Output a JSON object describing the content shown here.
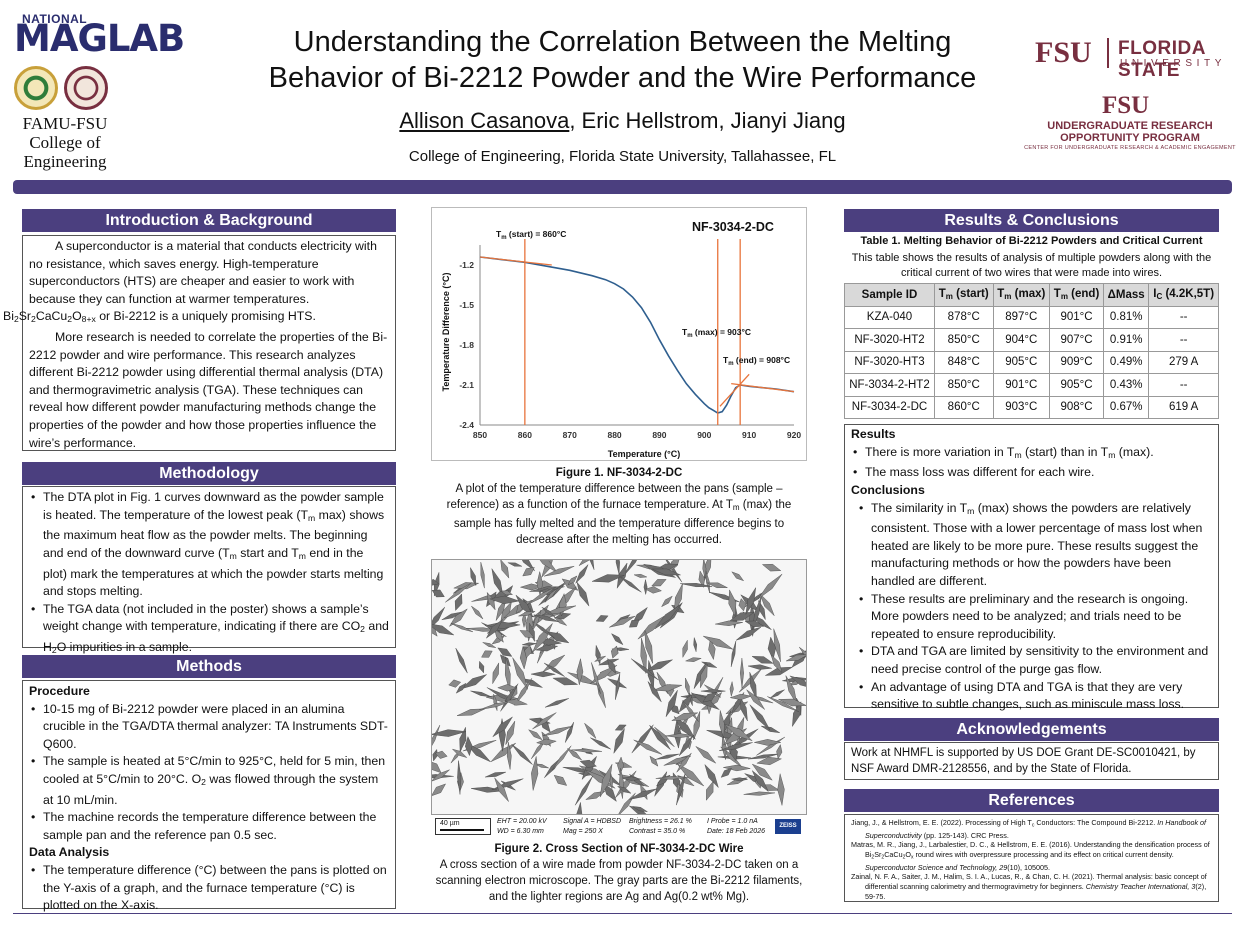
{
  "header": {
    "title_line1": "Understanding the Correlation Between the Melting",
    "title_line2": "Behavior of Bi-2212 Powder and the Wire Performance",
    "author_first": "Allison Casanova",
    "authors_rest": ", Eric Hellstrom, Jianyi Jiang",
    "affiliation": "College of Engineering, Florida State University, Tallahassee, FL"
  },
  "logos": {
    "maglab_small": "NATIONAL",
    "maglab": "MAGLAB",
    "famu_line1": "FAMU-FSU",
    "famu_line2": "College of",
    "famu_line3": "Engineering",
    "fsu_short": "FSU",
    "fsu_name": "FLORIDA STATE",
    "fsu_univ": "UNIVERSITY",
    "urop_short": "FSU",
    "urop_line1": "UNDERGRADUATE RESEARCH",
    "urop_line2": "OPPORTUNITY PROGRAM",
    "urop_sub": "CENTER FOR UNDERGRADUATE RESEARCH & ACADEMIC ENGAGEMENT"
  },
  "intro": {
    "heading": "Introduction & Background",
    "p1": "A superconductor is a material that conducts electricity with no resistance, which saves energy. High-temperature superconductors (HTS) are cheaper and easier to work with because they can function at warmer temperatures.",
    "formula_pre": "Bi",
    "formula_s1": "2",
    "formula_m1": "Sr",
    "formula_s2": "2",
    "formula_m2": "CaCu",
    "formula_s3": "2",
    "formula_m3": "O",
    "formula_s4": "8+x",
    "formula_post": " or Bi-2212 is a uniquely promising HTS.",
    "p2": "More research is needed to correlate the properties of the Bi-2212 powder and wire performance. This research analyzes different Bi-2212 powder using differential thermal analysis (DTA) and thermogravimetric analysis (TGA). These techniques can reveal how different powder manufacturing methods change the properties of the powder and how those properties influence the wire’s performance."
  },
  "methodology": {
    "heading": "Methodology",
    "b1_a": "The DTA plot in Fig. 1 curves downward as the powder sample is heated. The temperature of the lowest peak (T",
    "b1_sub1": "m",
    "b1_b": " max) shows the maximum heat flow as the powder melts. The beginning and end of the downward curve (T",
    "b1_sub2": "m",
    "b1_c": " start and T",
    "b1_sub3": "m",
    "b1_d": " end in the plot) mark the temperatures at which the powder starts melting and stops melting.",
    "b2_a": "The TGA data (not included in the poster) shows a sample’s weight change with temperature, indicating if there are CO",
    "b2_sub1": "2",
    "b2_b": " and H",
    "b2_sub2": "2",
    "b2_c": "O impurities in a sample."
  },
  "methods": {
    "heading": "Methods",
    "procedure": "Procedure",
    "p1": "10-15 mg of Bi-2212 powder were placed in an alumina crucible in the TGA/DTA thermal analyzer: TA Instruments SDT-Q600.",
    "p2_a": "The sample is heated at 5°C/min to 925°C, held for 5 min, then cooled at 5°C/min to 20°C. O",
    "p2_sub": "2",
    "p2_b": " was flowed through the system at 10 mL/min.",
    "p3": "The machine records the temperature difference between the sample pan and the reference pan 0.5 sec.",
    "analysis": "Data Analysis",
    "a1": "The temperature difference (°C) between the pans is plotted on the Y-axis of a graph, and the furnace temperature (°C) is plotted on the X-axis."
  },
  "chart_data": {
    "type": "line",
    "title": "NF-3034-2-DC",
    "xlabel": "Temperature (°C)",
    "ylabel": "Temperature Difference (°C)",
    "xlim": [
      850,
      920
    ],
    "ylim": [
      -2.4,
      -1.05
    ],
    "xticks": [
      850,
      860,
      870,
      880,
      890,
      900,
      910,
      920
    ],
    "yticks": [
      -1.2,
      -1.5,
      -1.8,
      -2.1,
      -2.4
    ],
    "series": [
      {
        "name": "DTA",
        "x": [
          850,
          855,
          860,
          865,
          870,
          875,
          878,
          880,
          882,
          884,
          886,
          888,
          890,
          892,
          894,
          896,
          898,
          900,
          901,
          902,
          903,
          904,
          905,
          906,
          907,
          908,
          910,
          913,
          916,
          920
        ],
        "y": [
          -1.14,
          -1.16,
          -1.18,
          -1.21,
          -1.24,
          -1.28,
          -1.31,
          -1.34,
          -1.38,
          -1.44,
          -1.52,
          -1.63,
          -1.76,
          -1.88,
          -1.99,
          -2.09,
          -2.17,
          -2.24,
          -2.27,
          -2.29,
          -2.31,
          -2.3,
          -2.25,
          -2.18,
          -2.12,
          -2.1,
          -2.11,
          -2.12,
          -2.13,
          -2.15
        ]
      }
    ],
    "annotations": [
      {
        "label": "Tm (start) = 860°C",
        "x": 860
      },
      {
        "label": "Tm (max) = 903°C",
        "x": 903
      },
      {
        "label": "Tm (end) = 908°C",
        "x": 908
      }
    ],
    "tangents": [
      {
        "x": [
          850,
          866
        ],
        "y": [
          -1.14,
          -1.2
        ]
      },
      {
        "x": [
          903.5,
          910
        ],
        "y": [
          -2.26,
          -2.02
        ]
      },
      {
        "x": [
          906,
          920
        ],
        "y": [
          -2.09,
          -2.15
        ]
      }
    ]
  },
  "chart_labels": {
    "start": "T",
    "start_sub": "m",
    "start_rest": " (start) = 860°C",
    "max": "T",
    "max_sub": "m",
    "max_rest": " (max) = 903°C",
    "end": "T",
    "end_sub": "m",
    "end_rest": " (end) = 908°C"
  },
  "fig1": {
    "title": "Figure 1. NF-3034-2-DC",
    "text_a": "A plot of the temperature difference between the pans (sample – reference) as a function of the furnace temperature.  At T",
    "text_sub": "m",
    "text_b": " (max) the sample has fully melted and the temperature difference begins to decrease after the melting has occurred."
  },
  "sem": {
    "scale": "40 µm",
    "eht": "EHT = 20.00 kV",
    "wd": "WD = 6.30 mm",
    "signal": "Signal A = HDBSD",
    "mag": "Mag =    250 X",
    "brightness": "Brightness =  26.1 %",
    "contrast": "Contrast =  35.0 %",
    "probe": "I Probe =    1.0 nA",
    "date": "Date: 18 Feb 2026",
    "brand": "ZEISS"
  },
  "fig2": {
    "title": "Figure 2. Cross Section of NF-3034-2-DC Wire",
    "text": "A cross section of a wire made from powder NF-3034-2-DC taken on a scanning electron microscope. The gray parts are the Bi-2212 filaments, and the lighter regions are Ag and Ag(0.2 wt% Mg)."
  },
  "results": {
    "heading": "Results & Conclusions",
    "table_title": "Table 1. Melting Behavior of Bi-2212 Powders and Critical Current",
    "table_desc": "This table shows the results of analysis of multiple powders along with the critical current of two wires that were made into wires.",
    "columns": [
      "Sample ID",
      "Tm (start)",
      "Tm (max)",
      "Tm (end)",
      "ΔMass",
      "IC (4.2K,5T)"
    ],
    "col_sample": "Sample ID",
    "col_tstart_a": "T",
    "col_tstart_sub": "m",
    "col_tstart_b": " (start)",
    "col_tmax_a": "T",
    "col_tmax_sub": "m",
    "col_tmax_b": " (max)",
    "col_tend_a": "T",
    "col_tend_sub": "m",
    "col_tend_b": " (end)",
    "col_mass": "ΔMass",
    "col_ic_a": "I",
    "col_ic_sub": "C",
    "col_ic_b": " (4.2K,5T)",
    "rows": [
      [
        "KZA-040",
        "878°C",
        "897°C",
        "901°C",
        "0.81%",
        "--"
      ],
      [
        "NF-3020-HT2",
        "850°C",
        "904°C",
        "907°C",
        "0.91%",
        "--"
      ],
      [
        "NF-3020-HT3",
        "848°C",
        "905°C",
        "909°C",
        "0.49%",
        "279 A"
      ],
      [
        "NF-3034-2-HT2",
        "850°C",
        "901°C",
        "905°C",
        "0.43%",
        "--"
      ],
      [
        "NF-3034-2-DC",
        "860°C",
        "903°C",
        "908°C",
        "0.67%",
        "619 A"
      ]
    ],
    "results_head": "Results",
    "r1_a": "There is more variation in T",
    "r1_sub1": "m",
    "r1_b": " (start) than in T",
    "r1_sub2": "m",
    "r1_c": " (max).",
    "r2": "The mass loss was different for each wire.",
    "conclusions_head": "Conclusions",
    "c1_a": "The similarity in T",
    "c1_sub": "m",
    "c1_b": " (max) shows the powders are relatively consistent. Those with a lower percentage of mass lost when heated are likely to be more pure. These results suggest the manufacturing methods or how the powders have been handled are different.",
    "c2": "These results are preliminary and the research is ongoing. More powders need to be analyzed; and trials need to be repeated to ensure reproducibility.",
    "c3": "DTA and TGA are limited by sensitivity to the environment and need precise control of the purge gas flow.",
    "c4": "An advantage of using DTA and TGA is that they are very sensitive to subtle changes, such as miniscule mass loss."
  },
  "ack": {
    "heading": "Acknowledgements",
    "text": "Work at NHMFL is supported by US DOE Grant DE-SC0010421, by NSF Award DMR-2128556, and by the State of Florida."
  },
  "refs": {
    "heading": "References",
    "r1_a": "Jiang, J., & Hellstrom, E. E. (2022). Processing of High T",
    "r1_sub": "c",
    "r1_b": " Conductors: The Compound Bi-2212. ",
    "r1_i": "In Handbook of Superconductivity",
    "r1_c": " (pp. 125-143). CRC Press.",
    "r2_a": "Matras, M. R., Jiang, J., Larbalestier, D. C., & Hellstrom, E. E. (2016). Understanding the densification process of Bi",
    "r2_s1": "2",
    "r2_m1": "Sr",
    "r2_s2": "2",
    "r2_m2": "CaCu",
    "r2_s3": "2",
    "r2_m3": "O",
    "r2_s4": "x",
    "r2_b": " round wires with overpressure processing and its effect on critical current density. ",
    "r2_i": "Superconductor Science and Technology, 29",
    "r2_c": "(10), 105005.",
    "r3_a": "Zainal, N. F. A., Saiter, J. M., Halim, S. I. A., Lucas, R., & Chan, C. H. (2021). Thermal analysis: basic concept of differential scanning calorimetry and thermogravimetry for beginners. ",
    "r3_i": "Chemistry Teacher International, 3",
    "r3_c": "(2), 59-75."
  }
}
